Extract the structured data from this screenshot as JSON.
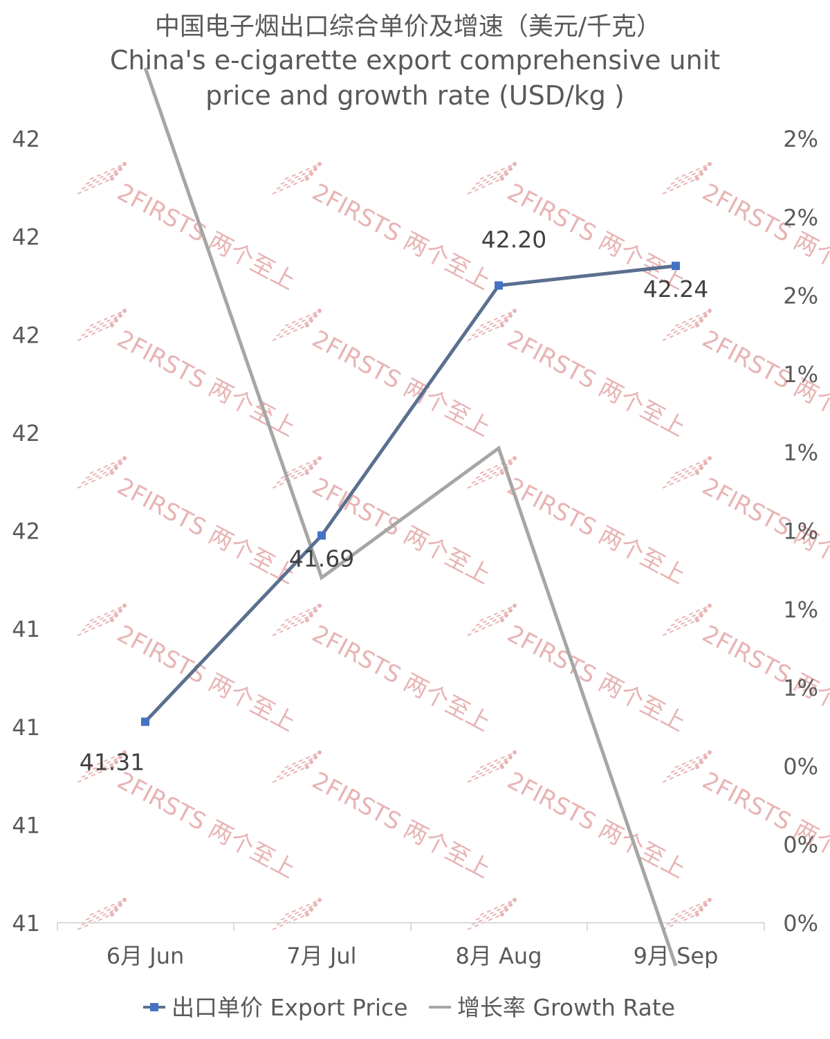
{
  "chart_data": {
    "type": "line",
    "title_zh": "中国电子烟出口综合单价及增速（美元/千克）",
    "title_en_line1": "China's e-cigarette export comprehensive unit",
    "title_en_line2": "price and growth rate (USD/kg )",
    "categories": [
      "6月 Jun",
      "7月 Jul",
      "8月 Aug",
      "9月 Sep"
    ],
    "series": [
      {
        "name": "出口单价 Export Price",
        "axis": "left",
        "values": [
          41.31,
          41.69,
          42.2,
          42.24
        ],
        "labels": [
          "41.31",
          "41.69",
          "42.20",
          "42.24"
        ],
        "color": "#5b6f8f",
        "marker_color": "#4472c4"
      },
      {
        "name": "增长率 Growth Rate",
        "axis": "right",
        "values": [
          2.18,
          0.88,
          1.21,
          -0.11
        ],
        "color": "#a6a6a6"
      }
    ],
    "left_axis": {
      "range": [
        40.9,
        42.5
      ],
      "tick_labels": [
        "42",
        "42",
        "42",
        "42",
        "42",
        "41",
        "41",
        "41",
        "41"
      ]
    },
    "right_axis": {
      "range": [
        0.0,
        2.0
      ],
      "tick_labels": [
        "2%",
        "2%",
        "2%",
        "1%",
        "1%",
        "1%",
        "1%",
        "1%",
        "0%",
        "0%",
        "0%"
      ]
    },
    "grid": false,
    "legend_position": "bottom",
    "watermark": "2FIRSTS 两个至上",
    "watermark_color": "#e8b4b4"
  }
}
